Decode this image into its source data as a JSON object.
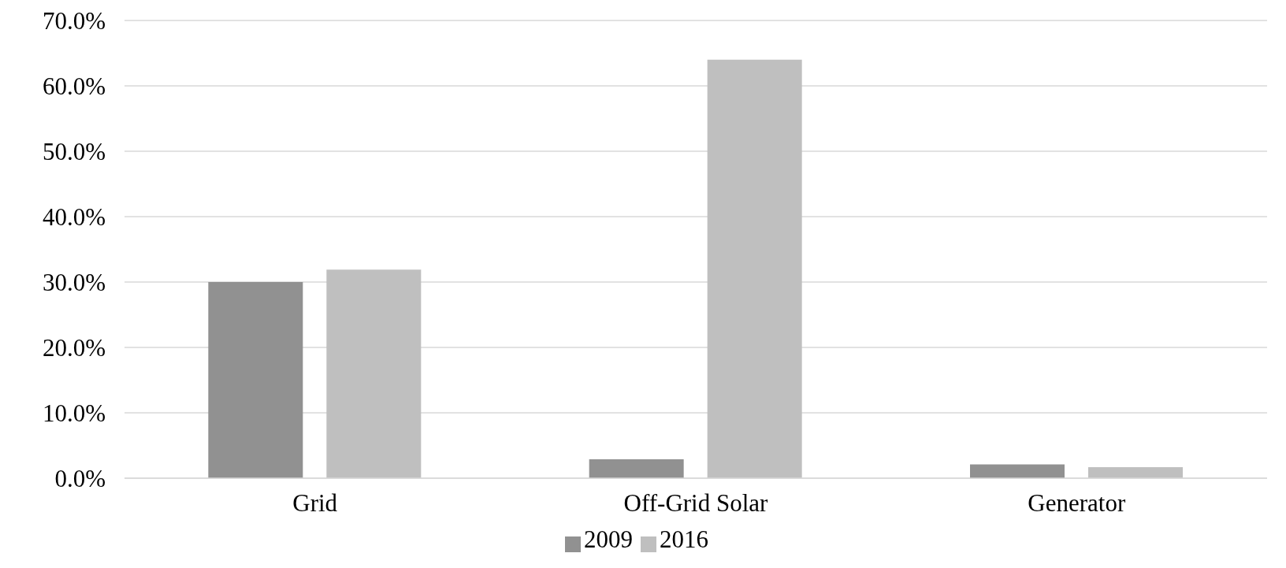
{
  "chart_data": {
    "type": "bar",
    "categories": [
      "Grid",
      "Off-Grid Solar",
      "Generator"
    ],
    "series": [
      {
        "name": "2009",
        "color": "#919191",
        "values": [
          30.0,
          2.9,
          2.1
        ]
      },
      {
        "name": "2016",
        "color": "#bfbfbf",
        "values": [
          31.9,
          64.0,
          1.7
        ]
      }
    ],
    "ylim": [
      0,
      70
    ],
    "yticks": [
      {
        "value": 0,
        "label": "0.0%"
      },
      {
        "value": 10,
        "label": "10.0%"
      },
      {
        "value": 20,
        "label": "20.0%"
      },
      {
        "value": 30,
        "label": "30.0%"
      },
      {
        "value": 40,
        "label": "40.0%"
      },
      {
        "value": 50,
        "label": "50.0%"
      },
      {
        "value": 60,
        "label": "60.0%"
      },
      {
        "value": 70,
        "label": "70.0%"
      }
    ],
    "grid": "y",
    "legend": "bottom"
  }
}
